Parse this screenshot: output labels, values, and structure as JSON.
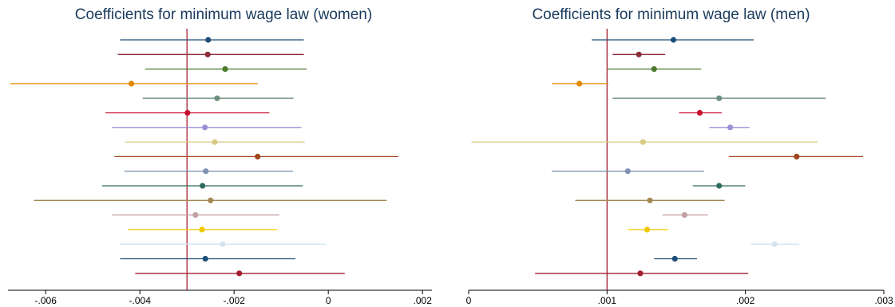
{
  "chart_data": [
    {
      "type": "scatter",
      "title": "Coefficients for minimum wage law (women)",
      "xlim": [
        -0.0068,
        0.0022
      ],
      "reference_line": -0.003,
      "ticks": [
        {
          "value": -0.006,
          "label": "-.006"
        },
        {
          "value": -0.004,
          "label": "-.004"
        },
        {
          "value": -0.002,
          "label": "-.002"
        },
        {
          "value": 0,
          "label": "0"
        },
        {
          "value": 0.002,
          "label": ".002"
        }
      ],
      "points": [
        {
          "est": -0.00255,
          "lo": -0.00442,
          "hi": -0.00052,
          "color": "#1f4e79"
        },
        {
          "est": -0.00256,
          "lo": -0.00447,
          "hi": -0.00052,
          "color": "#8b2e3a"
        },
        {
          "est": -0.00219,
          "lo": -0.00389,
          "hi": -0.00046,
          "color": "#4a7a2b"
        },
        {
          "est": -0.00418,
          "lo": -0.00675,
          "hi": -0.0015,
          "color": "#e08a00"
        },
        {
          "est": -0.00236,
          "lo": -0.00394,
          "hi": -0.00074,
          "color": "#6f8f7f"
        },
        {
          "est": -0.00299,
          "lo": -0.00473,
          "hi": -0.00125,
          "color": "#c8102e"
        },
        {
          "est": -0.00262,
          "lo": -0.00459,
          "hi": -0.00057,
          "color": "#9b8fd6"
        },
        {
          "est": -0.00241,
          "lo": -0.00431,
          "hi": -0.0005,
          "color": "#d9c883"
        },
        {
          "est": -0.0015,
          "lo": -0.00454,
          "hi": 0.00149,
          "color": "#a0461e"
        },
        {
          "est": -0.0026,
          "lo": -0.00433,
          "hi": -0.00075,
          "color": "#7e94b2"
        },
        {
          "est": -0.00267,
          "lo": -0.0048,
          "hi": -0.00054,
          "color": "#2e6b5e"
        },
        {
          "est": -0.0025,
          "lo": -0.00625,
          "hi": 0.00124,
          "color": "#a38a55"
        },
        {
          "est": -0.00282,
          "lo": -0.00459,
          "hi": -0.00104,
          "color": "#c4a0a0"
        },
        {
          "est": -0.00268,
          "lo": -0.00426,
          "hi": -0.00109,
          "color": "#f2c800"
        },
        {
          "est": -0.00224,
          "lo": -0.00443,
          "hi": -5e-05,
          "color": "#d3e4ee"
        },
        {
          "est": -0.00261,
          "lo": -0.00442,
          "hi": -0.0007,
          "color": "#1f4e79"
        },
        {
          "est": -0.00189,
          "lo": -0.0041,
          "hi": 0.00035,
          "color": "#a31e2e"
        }
      ]
    },
    {
      "type": "scatter",
      "title": "Coefficients for minimum wage law (men)",
      "xlim": [
        0,
        0.003
      ],
      "reference_line": 0.001,
      "ticks": [
        {
          "value": 0,
          "label": "0"
        },
        {
          "value": 0.001,
          "label": ".001"
        },
        {
          "value": 0.002,
          "label": ".002"
        },
        {
          "value": 0.003,
          "label": ".003"
        }
      ],
      "points": [
        {
          "est": 0.00148,
          "lo": 0.00089,
          "hi": 0.00206,
          "color": "#1f4e79"
        },
        {
          "est": 0.00123,
          "lo": 0.00104,
          "hi": 0.00142,
          "color": "#8b2e3a"
        },
        {
          "est": 0.00134,
          "lo": 0.001,
          "hi": 0.00168,
          "color": "#4a7a2b"
        },
        {
          "est": 0.0008,
          "lo": 0.0006,
          "hi": 0.00101,
          "color": "#e08a00"
        },
        {
          "est": 0.00181,
          "lo": 0.00104,
          "hi": 0.00258,
          "color": "#6f8f7f"
        },
        {
          "est": 0.00167,
          "lo": 0.00152,
          "hi": 0.00183,
          "color": "#c8102e"
        },
        {
          "est": 0.00189,
          "lo": 0.00174,
          "hi": 0.00203,
          "color": "#9b8fd6"
        },
        {
          "est": 0.00126,
          "lo": 2e-05,
          "hi": 0.00252,
          "color": "#d9c883"
        },
        {
          "est": 0.00237,
          "lo": 0.00188,
          "hi": 0.00285,
          "color": "#a0461e"
        },
        {
          "est": 0.00115,
          "lo": 0.0006,
          "hi": 0.0017,
          "color": "#7e94b2"
        },
        {
          "est": 0.00181,
          "lo": 0.00162,
          "hi": 0.002,
          "color": "#2e6b5e"
        },
        {
          "est": 0.00131,
          "lo": 0.00077,
          "hi": 0.00185,
          "color": "#a38a55"
        },
        {
          "est": 0.00156,
          "lo": 0.0014,
          "hi": 0.00173,
          "color": "#c4a0a0"
        },
        {
          "est": 0.00129,
          "lo": 0.00115,
          "hi": 0.00144,
          "color": "#f2c800"
        },
        {
          "est": 0.00221,
          "lo": 0.00204,
          "hi": 0.00239,
          "color": "#d3e4ee"
        },
        {
          "est": 0.00149,
          "lo": 0.00134,
          "hi": 0.00165,
          "color": "#1f4e79"
        },
        {
          "est": 0.00124,
          "lo": 0.00048,
          "hi": 0.00202,
          "color": "#a31e2e"
        }
      ]
    }
  ],
  "ref_line_color": "#a31e2e"
}
